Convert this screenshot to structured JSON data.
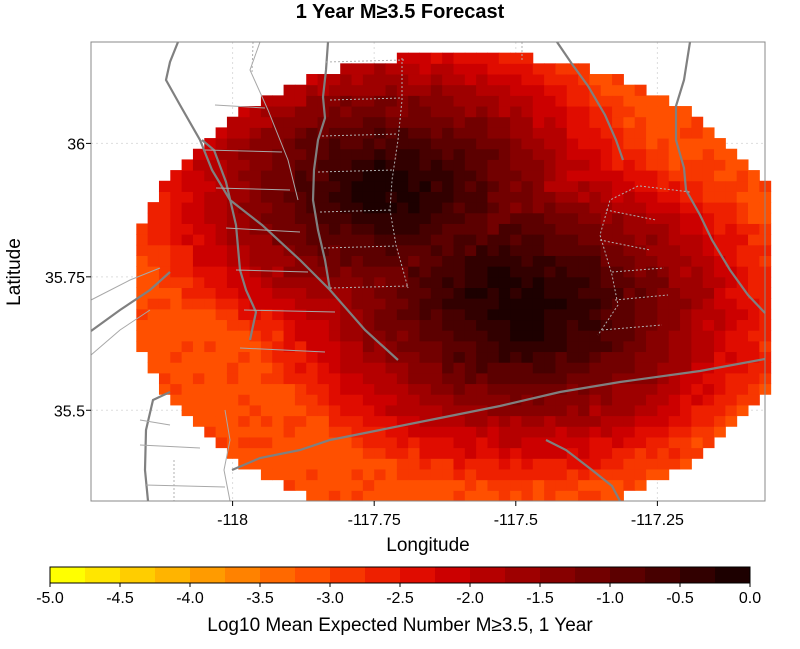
{
  "chart_data": {
    "type": "heatmap",
    "title": "1 Year M≥3.5 Forecast",
    "xlabel": "Longitude",
    "ylabel": "Latitude",
    "xlim": [
      -118.25,
      -117.06
    ],
    "ylim": [
      35.33,
      36.19
    ],
    "grid": true,
    "x_ticks": [
      {
        "value": -118,
        "label": "-118"
      },
      {
        "value": -117.75,
        "label": "-117.75"
      },
      {
        "value": -117.5,
        "label": "-117.5"
      },
      {
        "value": -117.25,
        "label": "-117.25"
      }
    ],
    "y_ticks": [
      {
        "value": 36,
        "label": "36"
      },
      {
        "value": 35.75,
        "label": "35.75"
      },
      {
        "value": 35.5,
        "label": "35.5"
      }
    ],
    "grid_cell_deg": 0.02,
    "region": {
      "center_lon": -117.59,
      "center_lat": 35.73,
      "radius_lon": 0.59,
      "radius_lat": 0.44
    },
    "value_field": {
      "description": "Log10 expected count per cell",
      "peaks": [
        {
          "lon": -117.48,
          "lat": 35.69,
          "value": -0.05
        },
        {
          "lon": -117.72,
          "lat": 35.91,
          "value": -0.1
        },
        {
          "lon": -117.52,
          "lat": 35.72,
          "value": -0.1
        }
      ],
      "edge_value": -3.1
    },
    "colorbar": {
      "label": "Log10 Mean Expected Number M≥3.5, 1 Year",
      "min": -5.0,
      "max": 0.0,
      "ticks": [
        "-5.0",
        "-4.5",
        "-4.0",
        "-3.5",
        "-3.0",
        "-2.5",
        "-2.0",
        "-1.5",
        "-1.0",
        "-0.5",
        "0.0"
      ],
      "colors": [
        "#ffff00",
        "#ffe600",
        "#ffcd00",
        "#ffb400",
        "#ff9b00",
        "#ff8200",
        "#ff6900",
        "#ff5000",
        "#f73700",
        "#ee2000",
        "#e00c00",
        "#cc0000",
        "#b50000",
        "#9e0000",
        "#870000",
        "#720000",
        "#5c0000",
        "#470000",
        "#320000",
        "#1d0000"
      ]
    }
  }
}
